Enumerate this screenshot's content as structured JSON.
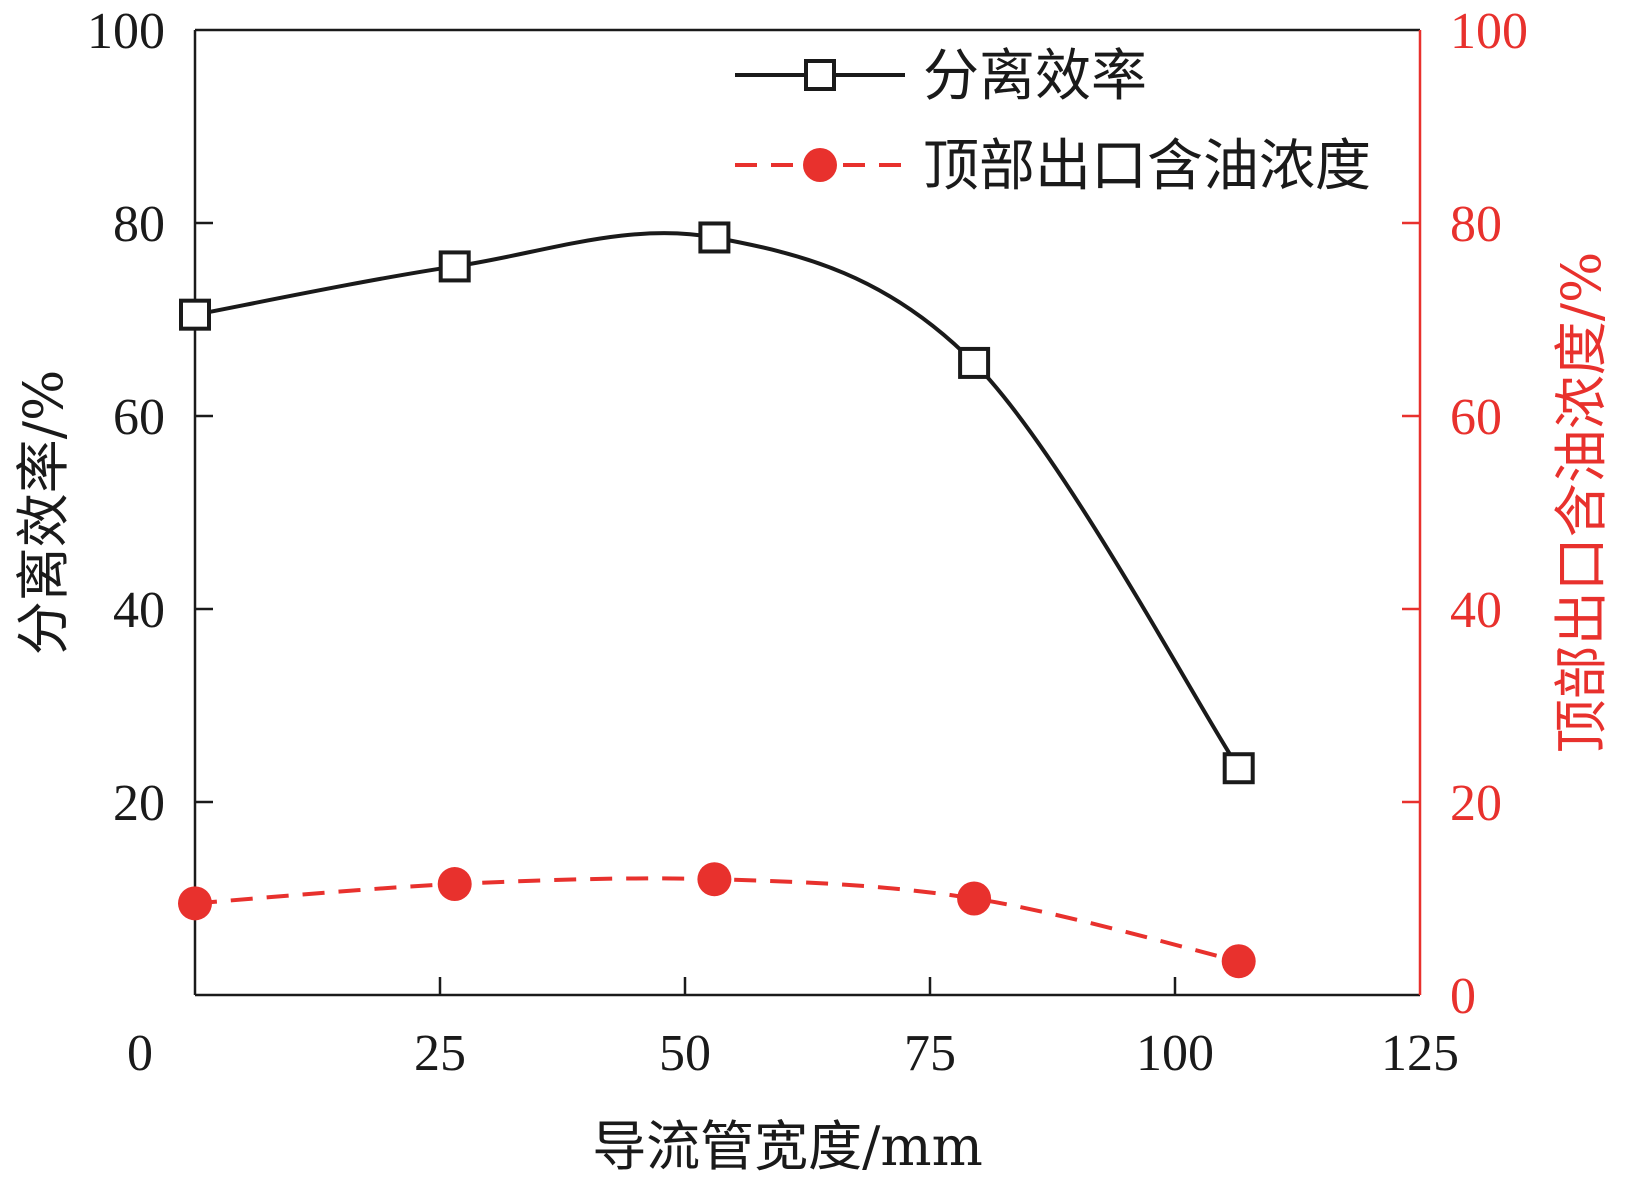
{
  "chart_data": {
    "type": "line",
    "xlabel": "导流管宽度/mm",
    "ylabel_left": "分离效率/%",
    "ylabel_right": "顶部出口含油浓度/%",
    "xlim": [
      0,
      125
    ],
    "ylim_left": [
      0,
      100
    ],
    "ylim_right": [
      0,
      100
    ],
    "x_ticks": [
      0,
      25,
      50,
      75,
      100,
      125
    ],
    "y_ticks_left": [
      20,
      40,
      60,
      80,
      100
    ],
    "y_ticks_right": [
      0,
      20,
      40,
      60,
      80,
      100
    ],
    "grid": false,
    "legend_position": "top-right",
    "series": [
      {
        "name": "分离效率",
        "axis": "left",
        "color": "#1a1a1a",
        "marker": "open-square",
        "line_style": "solid-smooth",
        "x": [
          0,
          26.5,
          53,
          79.5,
          106.5
        ],
        "y": [
          70.5,
          75.5,
          78.5,
          65.5,
          23.5
        ]
      },
      {
        "name": "顶部出口含油浓度",
        "axis": "right",
        "color": "#e8312d",
        "marker": "filled-circle",
        "line_style": "dashed-smooth",
        "x": [
          0,
          26.5,
          53,
          79.5,
          106.5
        ],
        "y": [
          9.5,
          11.5,
          12,
          10,
          3.5
        ]
      }
    ]
  }
}
